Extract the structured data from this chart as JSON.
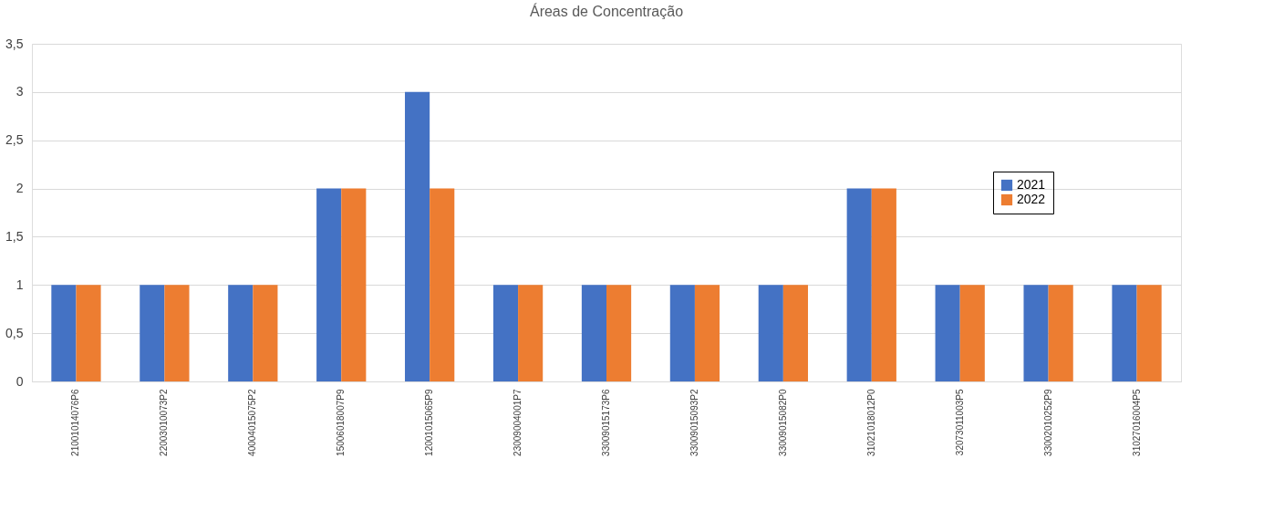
{
  "chart_data": {
    "type": "bar",
    "title": "Áreas de Concentração",
    "categories": [
      "21001014076P6",
      "22003010073P2",
      "40004015075P2",
      "15006018007P9",
      "12001015065P9",
      "23009004001P7",
      "33009015173P6",
      "33009015093P2",
      "33009015082P0",
      "31021018012P0",
      "32073011003P5",
      "33002010252P9",
      "31027016004P5"
    ],
    "series": [
      {
        "name": "2021",
        "color": "#4472c4",
        "values": [
          1,
          1,
          1,
          2,
          3,
          1,
          1,
          1,
          1,
          2,
          1,
          1,
          1
        ]
      },
      {
        "name": "2022",
        "color": "#ed7d31",
        "values": [
          1,
          1,
          1,
          2,
          2,
          1,
          1,
          1,
          1,
          2,
          1,
          1,
          1
        ]
      }
    ],
    "ylim": [
      0,
      3.5
    ],
    "yticks": [
      0,
      {
        "value": 0.5,
        "label": "0,5"
      },
      1,
      {
        "value": 1.5,
        "label": "1,5"
      },
      2,
      {
        "value": 2.5,
        "label": "2,5"
      },
      3,
      {
        "value": 3.5,
        "label": "3,5"
      }
    ],
    "grid": "y",
    "legend": "top right"
  }
}
